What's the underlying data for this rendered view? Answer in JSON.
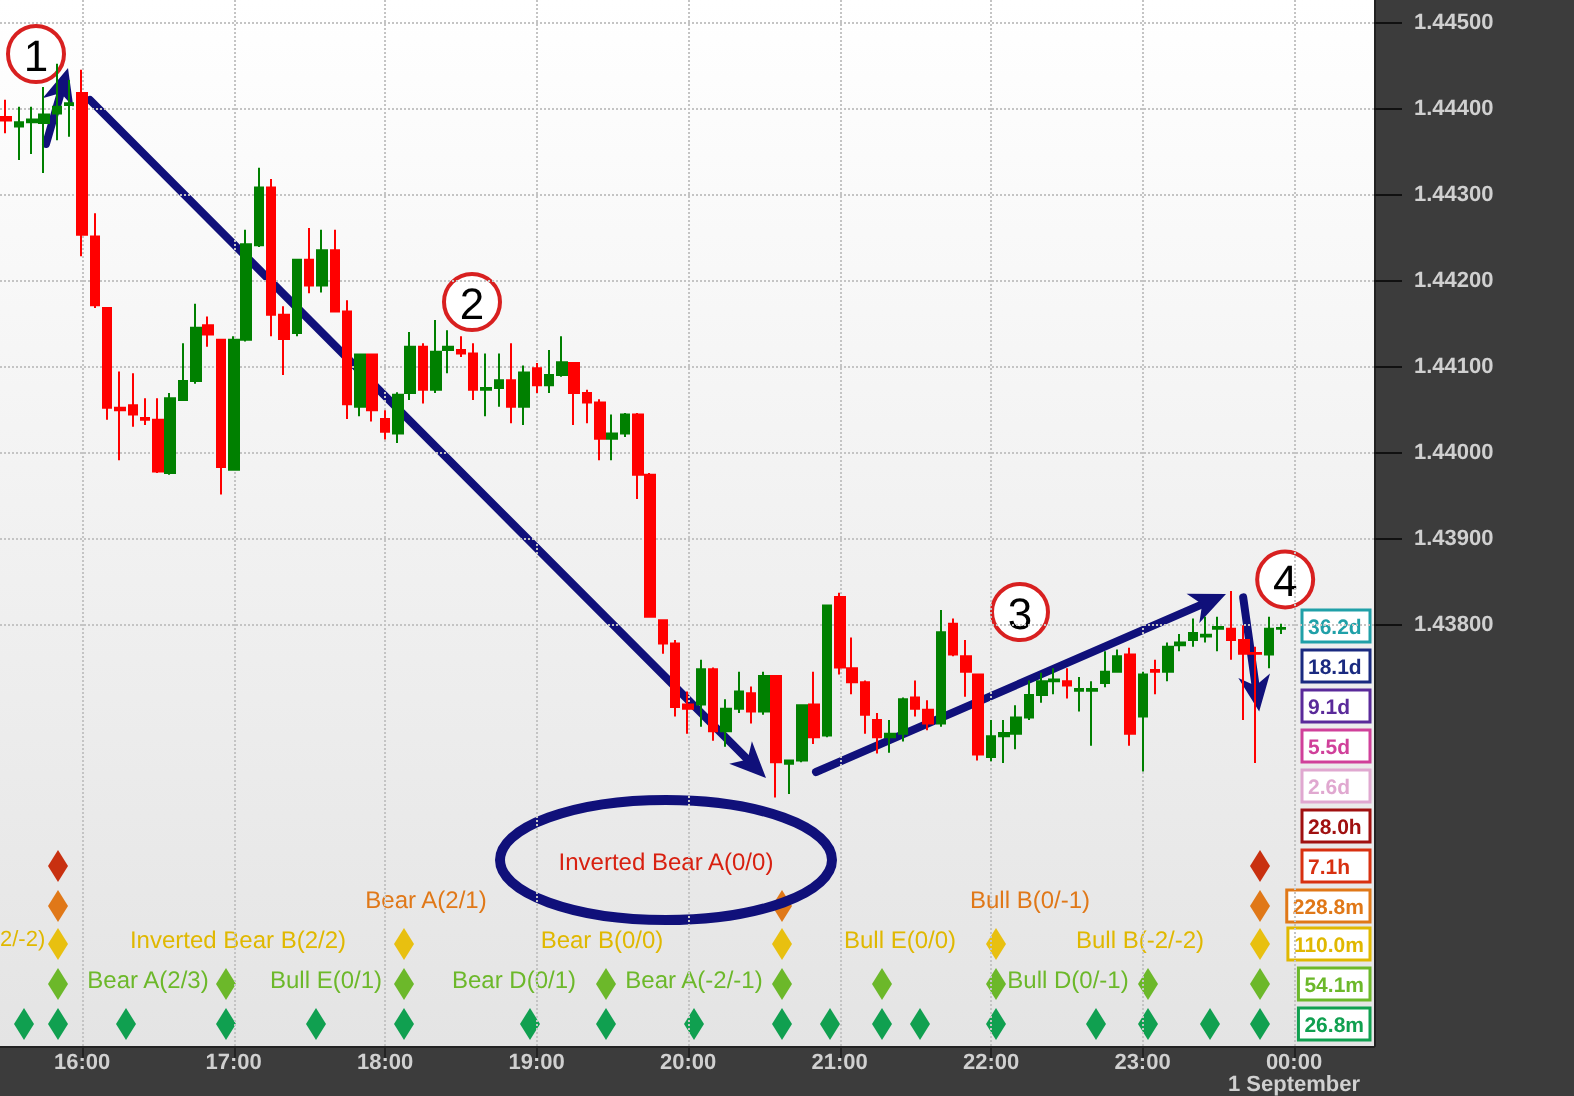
{
  "chart_data": {
    "type": "candlestick",
    "x": [
      15.5,
      15.5833,
      15.6667,
      15.75,
      15.8333,
      15.9167,
      16,
      16.0833,
      16.1667,
      16.25,
      16.3333,
      16.4167,
      16.5,
      16.5833,
      16.6667,
      16.75,
      16.8333,
      16.9167,
      17,
      17.0833,
      17.1667,
      17.25,
      17.3333,
      17.4167,
      17.5,
      17.5833,
      17.6667,
      17.75,
      17.8333,
      17.9167,
      18,
      18.0833,
      18.1667,
      18.25,
      18.3333,
      18.4167,
      18.5,
      18.5833,
      18.6667,
      18.75,
      18.8333,
      18.9167,
      19,
      19.0833,
      19.1667,
      19.25,
      19.3333,
      19.4167,
      19.5,
      19.5833,
      19.6667,
      19.75,
      19.8333,
      19.9167,
      20,
      20.0833,
      20.1667,
      20.25,
      20.3333,
      20.4167,
      20.5,
      20.5833,
      20.6667,
      20.75,
      20.8333,
      20.9167,
      21,
      21.0833,
      21.1667,
      21.25,
      21.3333,
      21.4167,
      21.5,
      21.5833,
      21.6667,
      21.75,
      21.8333,
      21.9167,
      22,
      22.0833,
      22.1667,
      22.25,
      22.3333,
      22.4167,
      22.5,
      22.5833,
      22.6667,
      22.75,
      22.8333,
      22.9167,
      23,
      23.0833,
      23.1667,
      23.25,
      23.3333,
      23.4167,
      23.5,
      23.5833,
      23.6667,
      23.75,
      23.8333,
      23.9167
    ],
    "ohlc": [
      [
        1.44391,
        1.44411,
        1.44372,
        1.44387
      ],
      [
        1.4438,
        1.44403,
        1.44341,
        1.44385
      ],
      [
        1.44385,
        1.44403,
        1.44348,
        1.44388
      ],
      [
        1.44384,
        1.44426,
        1.44326,
        1.44394
      ],
      [
        1.44395,
        1.44453,
        1.44364,
        1.44403
      ],
      [
        1.44405,
        1.44434,
        1.44368,
        1.44407
      ],
      [
        1.44419,
        1.44446,
        1.44229,
        1.44254
      ],
      [
        1.44252,
        1.44279,
        1.44169,
        1.44172
      ],
      [
        1.44169,
        1.44169,
        1.44039,
        1.44053
      ],
      [
        1.44053,
        1.44095,
        1.43992,
        1.4405
      ],
      [
        1.44056,
        1.44093,
        1.44031,
        1.44045
      ],
      [
        1.44041,
        1.44064,
        1.44033,
        1.44039
      ],
      [
        1.44039,
        1.44064,
        1.43977,
        1.43979
      ],
      [
        1.43977,
        1.4407,
        1.43975,
        1.44064
      ],
      [
        1.44062,
        1.44128,
        1.44062,
        1.44084
      ],
      [
        1.44084,
        1.44174,
        1.44081,
        1.44146
      ],
      [
        1.44149,
        1.44159,
        1.44124,
        1.44138
      ],
      [
        1.44132,
        1.44132,
        1.43952,
        1.43984
      ],
      [
        1.43981,
        1.44136,
        1.43981,
        1.44132
      ],
      [
        1.44132,
        1.4426,
        1.4413,
        1.44243
      ],
      [
        1.44242,
        1.44332,
        1.4424,
        1.44309
      ],
      [
        1.44309,
        1.44319,
        1.44136,
        1.44161
      ],
      [
        1.44161,
        1.44171,
        1.44091,
        1.44133
      ],
      [
        1.4414,
        1.44225,
        1.44136,
        1.44225
      ],
      [
        1.44225,
        1.44262,
        1.44186,
        1.44195
      ],
      [
        1.44195,
        1.4426,
        1.44187,
        1.44236
      ],
      [
        1.44236,
        1.4426,
        1.44165,
        1.44165
      ],
      [
        1.44165,
        1.44178,
        1.4404,
        1.44057
      ],
      [
        1.44054,
        1.44116,
        1.44043,
        1.44115
      ],
      [
        1.44115,
        1.44116,
        1.44037,
        1.4405
      ],
      [
        1.4404,
        1.4405,
        1.44016,
        1.44025
      ],
      [
        1.44023,
        1.44071,
        1.44012,
        1.44068
      ],
      [
        1.4407,
        1.44141,
        1.44062,
        1.44124
      ],
      [
        1.44124,
        1.44128,
        1.44058,
        1.44074
      ],
      [
        1.44074,
        1.44155,
        1.4407,
        1.44118
      ],
      [
        1.4412,
        1.44143,
        1.44093,
        1.44124
      ],
      [
        1.4412,
        1.44136,
        1.44112,
        1.44116
      ],
      [
        1.44116,
        1.44128,
        1.44062,
        1.44074
      ],
      [
        1.44074,
        1.44116,
        1.44043,
        1.44076
      ],
      [
        1.44076,
        1.44116,
        1.44054,
        1.44085
      ],
      [
        1.44085,
        1.44128,
        1.44035,
        1.44054
      ],
      [
        1.44054,
        1.44102,
        1.44033,
        1.44094
      ],
      [
        1.44099,
        1.44105,
        1.4407,
        1.44079
      ],
      [
        1.44079,
        1.4412,
        1.4407,
        1.44091
      ],
      [
        1.44091,
        1.44136,
        1.44089,
        1.44106
      ],
      [
        1.44105,
        1.44105,
        1.44033,
        1.4407
      ],
      [
        1.4407,
        1.44074,
        1.44035,
        1.44059
      ],
      [
        1.44059,
        1.44063,
        1.43992,
        1.44017
      ],
      [
        1.44017,
        1.44045,
        1.43992,
        1.44023
      ],
      [
        1.44023,
        1.44047,
        1.44019,
        1.44045
      ],
      [
        1.44045,
        1.44047,
        1.43947,
        1.43975
      ],
      [
        1.43975,
        1.43977,
        1.4381,
        1.4381
      ],
      [
        1.43806,
        1.43806,
        1.43767,
        1.43779
      ],
      [
        1.43779,
        1.43783,
        1.43694,
        1.43705
      ],
      [
        1.43708,
        1.43723,
        1.43674,
        1.43703
      ],
      [
        1.43708,
        1.4376,
        1.43682,
        1.43749
      ],
      [
        1.43749,
        1.43751,
        1.43666,
        1.43677
      ],
      [
        1.43677,
        1.43714,
        1.43659,
        1.43703
      ],
      [
        1.43703,
        1.43746,
        1.43698,
        1.43723
      ],
      [
        1.43721,
        1.43729,
        1.43686,
        1.437
      ],
      [
        1.437,
        1.43746,
        1.43696,
        1.43741
      ],
      [
        1.43741,
        1.43741,
        1.436,
        1.43641
      ],
      [
        1.43639,
        1.43643,
        1.43604,
        1.43643
      ],
      [
        1.43643,
        1.43707,
        1.43641,
        1.43707
      ],
      [
        1.43708,
        1.43746,
        1.43662,
        1.4367
      ],
      [
        1.43672,
        1.43823,
        1.4367,
        1.43823
      ],
      [
        1.43833,
        1.43838,
        1.43743,
        1.43751
      ],
      [
        1.4375,
        1.43786,
        1.4372,
        1.43734
      ],
      [
        1.43734,
        1.43736,
        1.43674,
        1.43696
      ],
      [
        1.4369,
        1.43698,
        1.43651,
        1.4367
      ],
      [
        1.4367,
        1.4369,
        1.43652,
        1.43674
      ],
      [
        1.43674,
        1.43716,
        1.43665,
        1.43714
      ],
      [
        1.43716,
        1.43736,
        1.43694,
        1.43703
      ],
      [
        1.43702,
        1.43713,
        1.43678,
        1.43686
      ],
      [
        1.43686,
        1.43818,
        1.43682,
        1.43792
      ],
      [
        1.43802,
        1.43808,
        1.43764,
        1.43766
      ],
      [
        1.43764,
        1.43783,
        1.43717,
        1.43746
      ],
      [
        1.43743,
        1.43743,
        1.43643,
        1.4365
      ],
      [
        1.43647,
        1.4369,
        1.43642,
        1.43671
      ],
      [
        1.43671,
        1.4369,
        1.4364,
        1.43675
      ],
      [
        1.43674,
        1.43707,
        1.43656,
        1.43693
      ],
      [
        1.43693,
        1.43736,
        1.4369,
        1.43719
      ],
      [
        1.43719,
        1.43745,
        1.4371,
        1.43735
      ],
      [
        1.43735,
        1.4375,
        1.4372,
        1.43737
      ],
      [
        1.43735,
        1.4375,
        1.43715,
        1.4373
      ],
      [
        1.43724,
        1.4374,
        1.437,
        1.43726
      ],
      [
        1.43724,
        1.43735,
        1.4366,
        1.43726
      ],
      [
        1.43733,
        1.4377,
        1.43728,
        1.43746
      ],
      [
        1.43746,
        1.43772,
        1.43745,
        1.43764
      ],
      [
        1.43766,
        1.43774,
        1.4366,
        1.43674
      ],
      [
        1.43694,
        1.43746,
        1.4363,
        1.43743
      ],
      [
        1.43748,
        1.4376,
        1.4372,
        1.43746
      ],
      [
        1.43746,
        1.4378,
        1.43735,
        1.43775
      ],
      [
        1.43777,
        1.4379,
        1.4377,
        1.4378
      ],
      [
        1.43783,
        1.43808,
        1.43775,
        1.43791
      ],
      [
        1.43787,
        1.4381,
        1.4378,
        1.43789
      ],
      [
        1.43796,
        1.4381,
        1.4377,
        1.43798
      ],
      [
        1.43796,
        1.4384,
        1.4376,
        1.43783
      ],
      [
        1.43783,
        1.438,
        1.4369,
        1.43767
      ],
      [
        1.43768,
        1.43775,
        1.4364,
        1.43767
      ],
      [
        1.43766,
        1.4381,
        1.4375,
        1.43796
      ],
      [
        1.43796,
        1.43802,
        1.4379,
        1.43797
      ]
    ],
    "xlim": [
      15.458,
      24.528
    ],
    "xticks": [
      {
        "value": 16,
        "label": "16:00"
      },
      {
        "value": 17,
        "label": "17:00"
      },
      {
        "value": 18,
        "label": "18:00"
      },
      {
        "value": 19,
        "label": "19:00"
      },
      {
        "value": 20,
        "label": "20:00"
      },
      {
        "value": 21,
        "label": "21:00"
      },
      {
        "value": 22,
        "label": "22:00"
      },
      {
        "value": 23,
        "label": "23:00"
      },
      {
        "value": 24,
        "label": "00:00\n1 September"
      }
    ],
    "ylim": [
      1.43311,
      1.44527
    ],
    "yticks": [
      {
        "value": 1.438,
        "label": "1.43800"
      },
      {
        "value": 1.439,
        "label": "1.43900"
      },
      {
        "value": 1.44,
        "label": "1.44000"
      },
      {
        "value": 1.441,
        "label": "1.44100"
      },
      {
        "value": 1.442,
        "label": "1.44200"
      },
      {
        "value": 1.443,
        "label": "1.44300"
      },
      {
        "value": 1.444,
        "label": "1.44400"
      },
      {
        "value": 1.445,
        "label": "1.44500"
      }
    ],
    "grid": true,
    "annotations": [
      "1",
      "2",
      "3",
      {
        "text": "4",
        "x": 23.77,
        "y": 1.437
      },
      "Inverted Bear A(0/0)",
      "2/-2)",
      "Inverted Bear B(2/2)",
      "Bear A(2/3)",
      "Bull E(0/1)",
      "Bear A(2/1)",
      "Bear D(0/1)",
      "Bear B(0/0)",
      "Bear A(-2/-1)",
      "Bull B(0/-1)",
      "Bull E(0/0)",
      "Bull B(-2/-2)",
      "Bull D(0/-1)",
      "36.2d",
      "18.1d",
      "9.1d",
      "5.5d",
      "2.6d",
      "28.0h",
      "7.1h",
      "228.8m",
      "110.0m",
      "54.1m",
      "26.8m"
    ]
  }
}
